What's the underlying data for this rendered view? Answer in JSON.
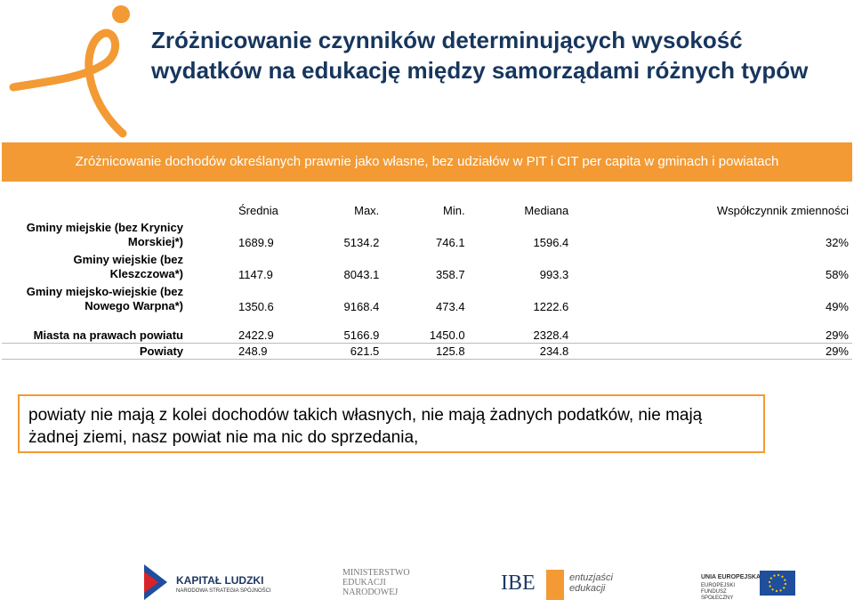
{
  "header": {
    "title": "Zróżnicowanie czynników determinujących wysokość wydatków na edukację między samorządami różnych typów"
  },
  "table": {
    "caption": "Zróżnicowanie dochodów określanych prawnie jako własne, bez udziałów w PIT i CIT per capita w gminach i powiatach",
    "columns": [
      "Średnia",
      "Max.",
      "Min.",
      "Mediana",
      "Współczynnik zmienności"
    ],
    "rows": [
      [
        "Gminy miejskie (bez Krynicy Morskiej*)",
        "1689.9",
        "5134.2",
        "746.1",
        "1596.4",
        "32%"
      ],
      [
        "Gminy wiejskie (bez Kleszczowa*)",
        "1147.9",
        "8043.1",
        "358.7",
        "993.3",
        "58%"
      ],
      [
        "Gminy miejsko-wiejskie (bez Nowego Warpna*)",
        "1350.6",
        "9168.4",
        "473.4",
        "1222.6",
        "49%"
      ],
      [
        "Miasta na prawach powiatu",
        "2422.9",
        "5166.9",
        "1450.0",
        "2328.4",
        "29%"
      ],
      [
        "Powiaty",
        "248.9",
        "621.5",
        "125.8",
        "234.8",
        "29%"
      ]
    ]
  },
  "note": "powiaty nie mają z kolei dochodów takich własnych, nie mają żadnych podatków, nie mają żadnej ziemi, nasz powiat nie ma nic do sprzedania,",
  "footer": {
    "logos": [
      "KAPITAŁ LUDZKI",
      "NARODOWA STRATEGIA SPÓJNOŚCI",
      "MINISTERSTWO EDUKACJI NARODOWEJ",
      "IBE",
      "entuzjaści edukacji",
      "UNIA EUROPEJSKA",
      "EUROPEJSKI FUNDUSZ SPOŁECZNY"
    ]
  }
}
